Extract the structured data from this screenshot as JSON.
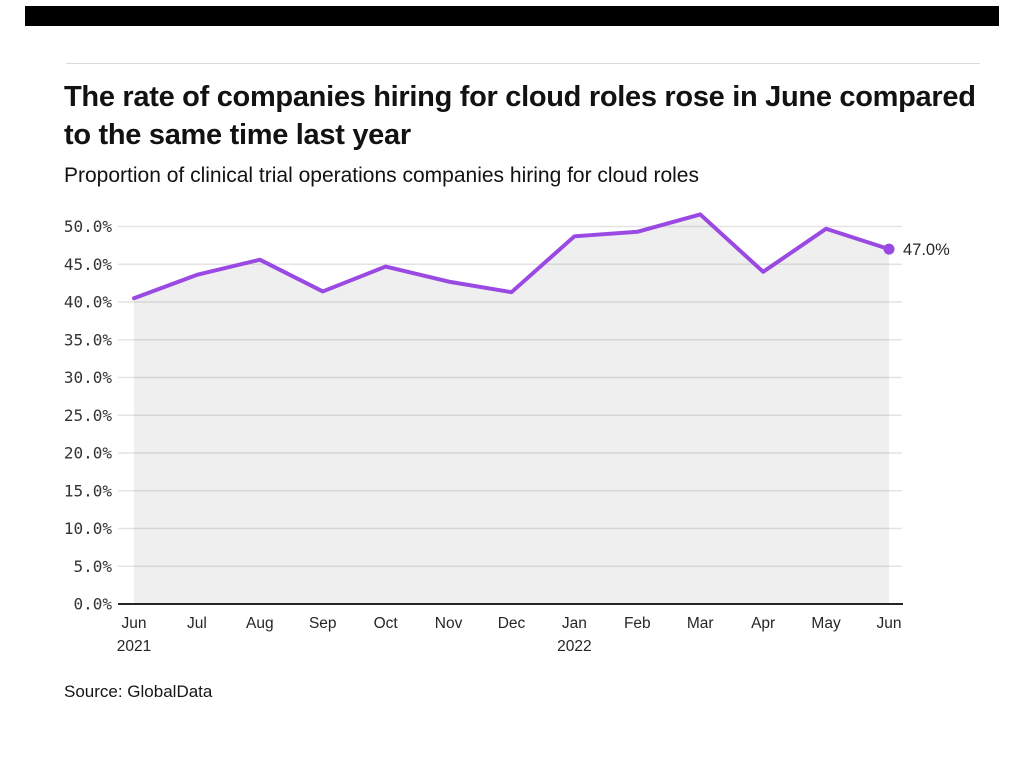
{
  "page": {
    "title": "The rate of companies hiring for cloud roles rose in June compared to the same time last year",
    "subtitle": "Proportion of clinical trial operations companies hiring for cloud roles",
    "source": "Source: GlobalData"
  },
  "colors": {
    "top_bar": "#000000",
    "line": "#9a49e2",
    "area_fill_rgba": "rgba(40,40,40,0.075)",
    "gridline": "#e4e4e4",
    "axis_line": "#262626",
    "tick_text": "#333333",
    "label_text": "#262626"
  },
  "chart_data": {
    "type": "line",
    "title": "The rate of companies hiring for cloud roles rose in June compared to the same time last year",
    "subtitle": "Proportion of clinical trial operations companies hiring for cloud roles",
    "xlabel": "",
    "ylabel": "",
    "ylim": [
      0,
      50
    ],
    "ytick_step": 5,
    "ytick_labels": [
      "0.0%",
      "5.0%",
      "10.0%",
      "15.0%",
      "20.0%",
      "25.0%",
      "30.0%",
      "35.0%",
      "40.0%",
      "45.0%",
      "50.0%"
    ],
    "grid": true,
    "legend": "none",
    "area_fill": true,
    "marker": "end-dot-only",
    "end_label": "47.0%",
    "x_labels": [
      {
        "month": "Jun",
        "year": "2021"
      },
      {
        "month": "Jul"
      },
      {
        "month": "Aug"
      },
      {
        "month": "Sep"
      },
      {
        "month": "Oct"
      },
      {
        "month": "Nov"
      },
      {
        "month": "Dec"
      },
      {
        "month": "Jan",
        "year": "2022"
      },
      {
        "month": "Feb"
      },
      {
        "month": "Mar"
      },
      {
        "month": "Apr"
      },
      {
        "month": "May"
      },
      {
        "month": "Jun"
      }
    ],
    "series": [
      {
        "name": "Proportion of clinical trial operations companies hiring for cloud roles",
        "values": [
          40.5,
          43.6,
          45.6,
          41.4,
          44.7,
          42.7,
          41.3,
          48.7,
          49.3,
          51.6,
          44.0,
          49.7,
          47.0
        ]
      }
    ]
  }
}
